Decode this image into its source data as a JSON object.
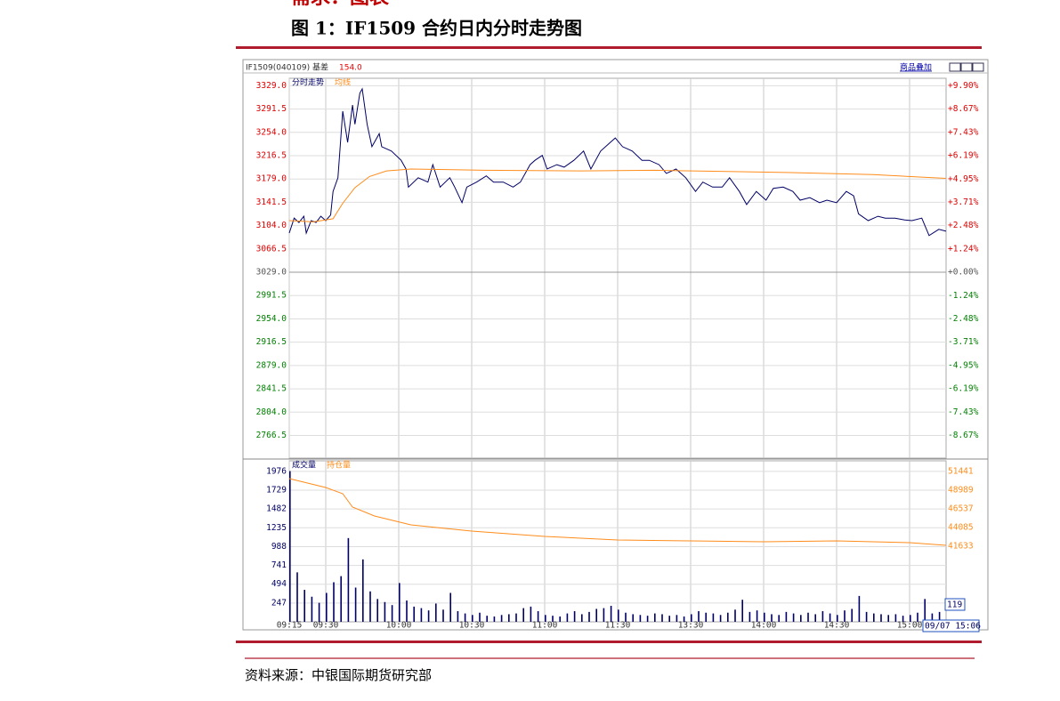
{
  "top_caption": "需求：图表",
  "figure_title": "图 1：IF1509 合约日内分时走势图",
  "source": "资料来源：中银国际期货研究部",
  "chart_data": [
    {
      "type": "line",
      "header": "IF1509(040109) 基差",
      "basis": "154.0",
      "overlay_button": "商品叠加",
      "xlim": [
        0,
        270
      ],
      "ylim": [
        2730,
        3341
      ],
      "yticks": [
        {
          "value": 3329,
          "label": "3329.0"
        },
        3291.5,
        {
          "value": 3254,
          "label": "3254.0"
        },
        3216.5,
        {
          "value": 3179,
          "label": "3179.0"
        },
        3141.5,
        {
          "value": 3104,
          "label": "3104.0"
        },
        3066.5,
        {
          "value": 3029,
          "label": "3029.0"
        },
        2991.5,
        {
          "value": 2954,
          "label": "2954.0"
        },
        2916.5,
        {
          "value": 2879,
          "label": "2879.0"
        },
        2841.5,
        {
          "value": 2804,
          "label": "2804.0"
        },
        2766.5
      ],
      "y2lim": [
        -9.87,
        10.3
      ],
      "y2ticks": [
        {
          "value": 9.9,
          "label": "+9.90%"
        },
        {
          "value": 8.67,
          "label": "+8.67%"
        },
        {
          "value": 7.43,
          "label": "+7.43%"
        },
        {
          "value": 6.19,
          "label": "+6.19%"
        },
        {
          "value": 4.95,
          "label": "+4.95%"
        },
        {
          "value": 3.71,
          "label": "+3.71%"
        },
        {
          "value": 2.48,
          "label": "+2.48%"
        },
        {
          "value": 1.24,
          "label": "+1.24%"
        },
        {
          "value": 0,
          "label": "+0.00%"
        },
        {
          "value": -1.24,
          "label": "-1.24%"
        },
        {
          "value": -2.48,
          "label": "-2.48%"
        },
        {
          "value": -3.71,
          "label": "-3.71%"
        },
        {
          "value": -4.95,
          "label": "-4.95%"
        },
        {
          "value": -6.19,
          "label": "-6.19%"
        },
        {
          "value": -7.43,
          "label": "-7.43%"
        },
        {
          "value": -8.67,
          "label": "-8.67%"
        }
      ],
      "grid": true,
      "series": [
        {
          "name": "分时走势",
          "color": "#000066",
          "x": [
            0,
            2,
            4,
            6,
            7,
            9,
            11,
            13,
            15,
            17,
            18,
            20,
            22,
            24,
            26,
            27,
            29,
            30,
            32,
            34,
            37,
            38,
            42,
            46,
            48,
            49,
            53,
            57,
            59,
            62,
            66,
            68,
            71,
            73,
            77,
            81,
            84,
            88,
            92,
            95,
            99,
            101,
            104,
            106,
            110,
            113,
            117,
            121,
            124,
            128,
            132,
            134,
            137,
            141,
            145,
            148,
            152,
            155,
            159,
            163,
            167,
            170,
            174,
            178,
            181,
            185,
            188,
            192,
            196,
            199,
            203,
            207,
            210,
            214,
            218,
            221,
            225,
            229,
            232,
            234,
            238,
            242,
            245,
            249,
            253,
            256,
            260,
            263,
            267,
            270
          ],
          "values": [
            3092,
            3116,
            3109,
            3119,
            3092,
            3112,
            3109,
            3119,
            3112,
            3121,
            3159,
            3181,
            3288,
            3238,
            3298,
            3267,
            3317,
            3324,
            3267,
            3231,
            3252,
            3231,
            3224,
            3209,
            3195,
            3166,
            3181,
            3174,
            3202,
            3166,
            3181,
            3166,
            3141,
            3166,
            3174,
            3184,
            3174,
            3174,
            3166,
            3174,
            3202,
            3209,
            3217,
            3195,
            3202,
            3198,
            3209,
            3224,
            3195,
            3224,
            3238,
            3245,
            3231,
            3224,
            3209,
            3209,
            3202,
            3188,
            3195,
            3181,
            3159,
            3174,
            3166,
            3166,
            3181,
            3159,
            3138,
            3159,
            3145,
            3164,
            3166,
            3159,
            3145,
            3149,
            3141,
            3145,
            3141,
            3159,
            3152,
            3123,
            3112,
            3119,
            3116,
            3116,
            3113,
            3112,
            3116,
            3088,
            3098,
            3095
          ]
        },
        {
          "name": "均线",
          "color": "#ff8c1a",
          "x": [
            0,
            10,
            18,
            22,
            27,
            33,
            40,
            50,
            80,
            120,
            150,
            180,
            210,
            240,
            270
          ],
          "values": [
            3112,
            3110,
            3115,
            3140,
            3165,
            3183,
            3192,
            3195,
            3193,
            3192,
            3193,
            3191,
            3189,
            3186,
            3180
          ]
        }
      ]
    },
    {
      "type": "bar",
      "xlim": [
        0,
        270
      ],
      "xticks": [
        {
          "value": 0,
          "label": "09:15"
        },
        {
          "value": 15,
          "label": "09:30"
        },
        {
          "value": 45,
          "label": "10:00"
        },
        {
          "value": 75,
          "label": "10:30"
        },
        {
          "value": 105,
          "label": "11:00"
        },
        {
          "value": 135,
          "label": "11:30"
        },
        {
          "value": 165,
          "label": "13:30"
        },
        {
          "value": 195,
          "label": "14:00"
        },
        {
          "value": 225,
          "label": "14:30"
        },
        {
          "value": 255,
          "label": "15:00"
        }
      ],
      "ylim": [
        0,
        2115
      ],
      "yticks": [
        1976,
        1729,
        1482,
        1235,
        988,
        741,
        494,
        247
      ],
      "y2lim": [
        31708,
        52842
      ],
      "y2ticks": [
        51441,
        48989,
        46537,
        44085,
        41633
      ],
      "cursor_time": "09/07 15:06",
      "cursor_value": 119,
      "series": [
        {
          "name": "成交量",
          "color": "#000066",
          "x": [
            0,
            3,
            6,
            9,
            12,
            15,
            18,
            21,
            24,
            27,
            30,
            33,
            36,
            39,
            42,
            45,
            48,
            51,
            54,
            57,
            60,
            63,
            66,
            69,
            72,
            75,
            78,
            81,
            84,
            87,
            90,
            93,
            96,
            99,
            102,
            105,
            108,
            111,
            114,
            117,
            120,
            123,
            126,
            129,
            132,
            135,
            138,
            141,
            144,
            147,
            150,
            153,
            156,
            159,
            162,
            165,
            168,
            171,
            174,
            177,
            180,
            183,
            186,
            189,
            192,
            195,
            198,
            201,
            204,
            207,
            210,
            213,
            216,
            219,
            222,
            225,
            228,
            231,
            234,
            237,
            240,
            243,
            246,
            249,
            252,
            255,
            258,
            261,
            264,
            267
          ],
          "values": [
            1980,
            650,
            420,
            330,
            250,
            380,
            520,
            600,
            1100,
            450,
            820,
            400,
            300,
            260,
            220,
            510,
            280,
            200,
            180,
            150,
            240,
            160,
            380,
            140,
            110,
            90,
            120,
            80,
            70,
            90,
            100,
            110,
            180,
            200,
            140,
            90,
            80,
            70,
            110,
            140,
            100,
            130,
            170,
            180,
            210,
            160,
            120,
            100,
            90,
            80,
            110,
            100,
            80,
            90,
            70,
            100,
            140,
            120,
            110,
            90,
            120,
            160,
            290,
            130,
            150,
            120,
            100,
            90,
            130,
            110,
            90,
            120,
            100,
            140,
            110,
            90,
            150,
            170,
            340,
            130,
            110,
            100,
            90,
            100,
            80,
            90,
            120,
            300,
            110,
            130
          ]
        },
        {
          "name": "持仓量",
          "color": "#ff8c1a",
          "axis": "y2",
          "x": [
            0,
            15,
            22,
            26,
            35,
            50,
            75,
            105,
            135,
            165,
            195,
            225,
            255,
            270
          ],
          "values": [
            50507,
            49339,
            48522,
            46770,
            45603,
            44435,
            43617,
            42916,
            42449,
            42332,
            42215,
            42332,
            42099,
            41749
          ]
        }
      ]
    }
  ]
}
